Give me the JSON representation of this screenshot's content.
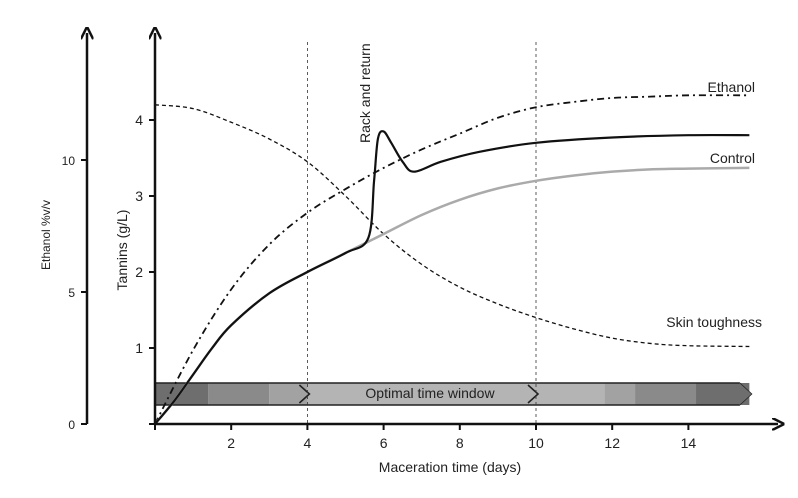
{
  "chart_data": {
    "type": "line",
    "xlabel": "Maceration time (days)",
    "ylabel": "Tannins (g/L)",
    "y2label": "Ethanol %v/v",
    "xlim": [
      0,
      15.6
    ],
    "ylim": [
      0,
      4.7
    ],
    "y2lim": [
      0,
      17.8
    ],
    "xticks": [
      2,
      4,
      6,
      8,
      10,
      12,
      14
    ],
    "yticks": [
      1,
      2,
      3,
      4
    ],
    "y2ticks": [
      0,
      5,
      10
    ],
    "yzero_label": "0",
    "vlines": [
      4,
      10
    ],
    "series": [
      {
        "name": "Control",
        "axis": "tannins",
        "style": "solid-gray",
        "color": "#aaaaaa",
        "x": [
          0,
          0.5,
          1,
          1.5,
          2,
          3,
          4,
          5,
          6,
          7,
          8,
          9,
          10,
          11,
          12,
          13,
          14,
          15.6
        ],
        "y": [
          0,
          0.3,
          0.65,
          1.0,
          1.3,
          1.72,
          2.0,
          2.25,
          2.5,
          2.75,
          2.95,
          3.1,
          3.2,
          3.27,
          3.32,
          3.35,
          3.36,
          3.37
        ]
      },
      {
        "name": "",
        "axis": "tannins",
        "style": "solid-black",
        "color": "#111111",
        "x": [
          0,
          0.5,
          1,
          1.5,
          2,
          3,
          4,
          5,
          5.6,
          5.75,
          5.85,
          6.0,
          6.2,
          6.5,
          6.8,
          7.5,
          8.5,
          10,
          12,
          14,
          15.6
        ],
        "y": [
          0,
          0.3,
          0.65,
          1.0,
          1.3,
          1.72,
          2.0,
          2.25,
          2.45,
          3.2,
          3.75,
          3.85,
          3.7,
          3.45,
          3.32,
          3.45,
          3.58,
          3.7,
          3.77,
          3.8,
          3.8
        ]
      },
      {
        "name": "Ethanol",
        "axis": "ethanol",
        "style": "dash-dot",
        "color": "#111111",
        "x": [
          0,
          1,
          2,
          3,
          4,
          5,
          6,
          7,
          8,
          9,
          10,
          11,
          12,
          13,
          14,
          15.6
        ],
        "y": [
          0,
          2.8,
          5.1,
          6.8,
          8.0,
          8.9,
          9.7,
          10.4,
          11.0,
          11.6,
          12.0,
          12.2,
          12.35,
          12.4,
          12.45,
          12.45
        ]
      },
      {
        "name": "Skin toughness",
        "axis": "tannins",
        "style": "dashed",
        "color": "#111111",
        "x": [
          0,
          1,
          2,
          3,
          4,
          5,
          6,
          7,
          8,
          9,
          10,
          11,
          12,
          13,
          14,
          15.6
        ],
        "y": [
          4.2,
          4.15,
          3.97,
          3.75,
          3.45,
          3.0,
          2.5,
          2.1,
          1.8,
          1.58,
          1.4,
          1.25,
          1.13,
          1.06,
          1.03,
          1.02
        ]
      }
    ],
    "annotations": [
      {
        "text": "Rack and return",
        "x": 5.85
      }
    ],
    "time_band": {
      "label": "Optimal time window",
      "window": [
        4,
        10
      ],
      "segments": [
        {
          "from": 0,
          "to": 1.4,
          "color": "#6e6e6e"
        },
        {
          "from": 1.4,
          "to": 3.0,
          "color": "#8a8a8a"
        },
        {
          "from": 3.0,
          "to": 4.0,
          "color": "#a2a2a2"
        },
        {
          "from": 4.0,
          "to": 10.0,
          "color": "#b4b4b4"
        },
        {
          "from": 10.0,
          "to": 11.8,
          "color": "#b4b4b4"
        },
        {
          "from": 11.8,
          "to": 12.6,
          "color": "#a2a2a2"
        },
        {
          "from": 12.6,
          "to": 14.2,
          "color": "#8a8a8a"
        },
        {
          "from": 14.2,
          "to": 15.6,
          "color": "#6e6e6e"
        }
      ]
    },
    "grid": false,
    "legend": "inline labels at line ends"
  }
}
